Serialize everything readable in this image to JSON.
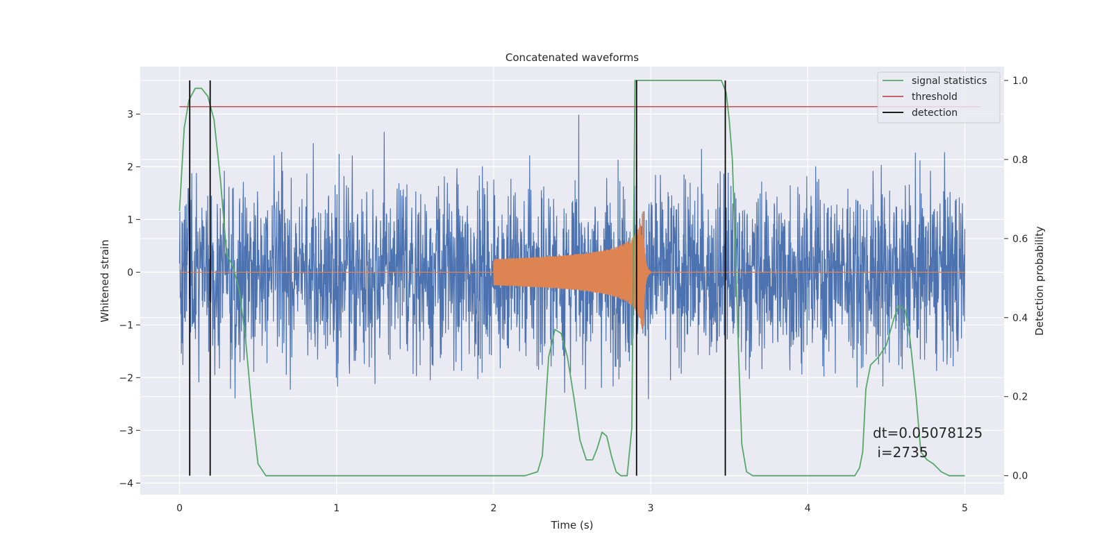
{
  "chart_data": {
    "type": "line",
    "title": "Concatenated waveforms",
    "xlabel": "Time (s)",
    "ylabel": "Whitened strain",
    "y2label": "Detection probability",
    "xlim": [
      -0.25,
      5.25
    ],
    "ylim": [
      -4.22,
      3.9
    ],
    "y2lim": [
      -0.048,
      1.035
    ],
    "xticks": [
      0,
      1,
      2,
      3,
      4,
      5
    ],
    "xtick_labels": [
      "0",
      "1",
      "2",
      "3",
      "4",
      "5"
    ],
    "yticks": [
      -4,
      -3,
      -2,
      -1,
      0,
      1,
      2,
      3
    ],
    "ytick_labels": [
      "−4",
      "−3",
      "−2",
      "−1",
      "0",
      "1",
      "2",
      "3"
    ],
    "y2ticks": [
      0.0,
      0.2,
      0.4,
      0.6,
      0.8,
      1.0
    ],
    "y2tick_labels": [
      "0.0",
      "0.2",
      "0.4",
      "0.6",
      "0.8",
      "1.0"
    ],
    "grid": true,
    "legend_position": "top-right",
    "annotation": [
      "dt=0.05078125",
      " i=2735"
    ],
    "strain_noise": {
      "color": "#4c72b0",
      "x_start": 0,
      "x_end": 5,
      "n_samples": 2560,
      "typical_range": [
        -3.4,
        3.4
      ]
    },
    "injected_signal": {
      "color": "#dd8452",
      "start": 2.0,
      "merger": 2.95,
      "peak_amplitude": 1.4
    },
    "series": [
      {
        "name": "signal statistics",
        "axis": "right",
        "color": "#55a868",
        "x": [
          0,
          0.03,
          0.06,
          0.1,
          0.14,
          0.18,
          0.22,
          0.26,
          0.3,
          0.34,
          0.38,
          0.42,
          0.46,
          0.5,
          0.55,
          1.0,
          1.5,
          2.0,
          2.2,
          2.28,
          2.31,
          2.35,
          2.39,
          2.43,
          2.47,
          2.51,
          2.55,
          2.59,
          2.63,
          2.66,
          2.69,
          2.72,
          2.75,
          2.78,
          2.81,
          2.85,
          2.88,
          2.9,
          2.93,
          2.97,
          3.1,
          3.3,
          3.45,
          3.48,
          3.5,
          3.52,
          3.54,
          3.56,
          3.58,
          3.61,
          3.65,
          3.8,
          4.0,
          4.2,
          4.3,
          4.33,
          4.35,
          4.37,
          4.4,
          4.45,
          4.5,
          4.55,
          4.58,
          4.62,
          4.65,
          4.69,
          4.72,
          4.76,
          4.8,
          4.85,
          4.9,
          5.0
        ],
        "y": [
          0.67,
          0.88,
          0.95,
          0.98,
          0.98,
          0.96,
          0.9,
          0.75,
          0.56,
          0.53,
          0.47,
          0.35,
          0.17,
          0.03,
          0.0,
          0.0,
          0.0,
          0.0,
          0.0,
          0.01,
          0.05,
          0.3,
          0.37,
          0.36,
          0.3,
          0.2,
          0.09,
          0.04,
          0.04,
          0.07,
          0.11,
          0.1,
          0.05,
          0.01,
          0.0,
          0.0,
          0.12,
          1.0,
          1.0,
          1.0,
          1.0,
          1.0,
          1.0,
          0.97,
          0.9,
          0.8,
          0.56,
          0.3,
          0.08,
          0.01,
          0.0,
          0.0,
          0.0,
          0.0,
          0.0,
          0.02,
          0.06,
          0.22,
          0.28,
          0.3,
          0.33,
          0.4,
          0.43,
          0.42,
          0.35,
          0.2,
          0.06,
          0.04,
          0.03,
          0.01,
          0.0,
          0.0
        ]
      },
      {
        "name": "threshold",
        "axis": "left",
        "color": "#c44e52",
        "x": [
          0,
          5.1
        ],
        "y": [
          3.14,
          3.14
        ]
      },
      {
        "name": "detection",
        "axis": "right",
        "color": "#000000",
        "vertical_lines_x": [
          0.065,
          0.195,
          2.91,
          3.475
        ],
        "y_span": [
          0.0,
          1.0
        ]
      }
    ]
  }
}
